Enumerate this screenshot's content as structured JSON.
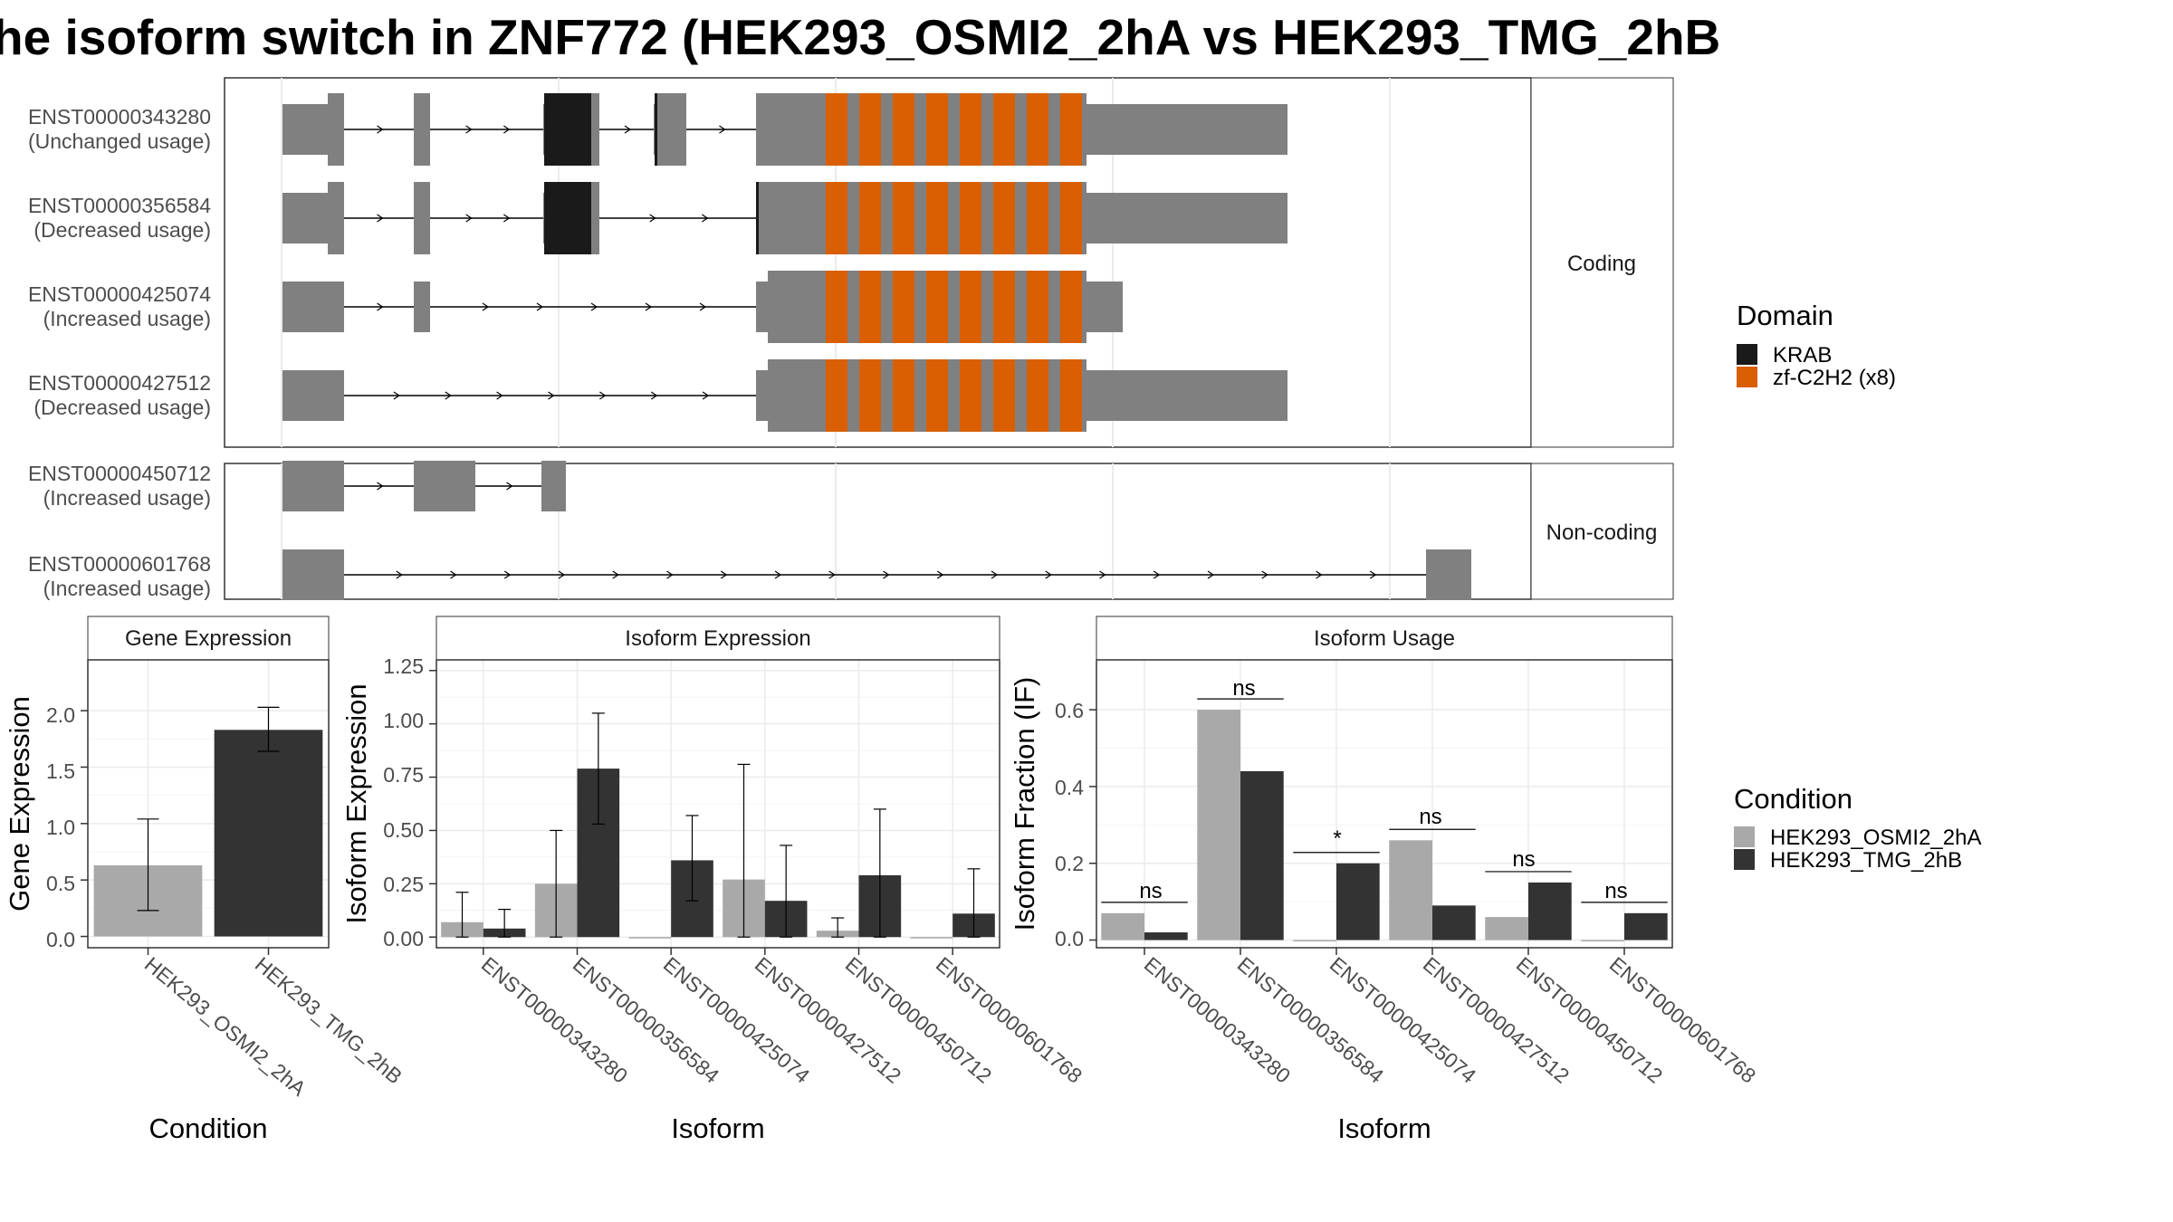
{
  "title": "he isoform switch in ZNF772 (HEK293_OSMI2_2hA vs HEK293_TMG_2hB",
  "colors": {
    "exon": "#808080",
    "krab": "#1a1a1a",
    "zf": "#d95f02",
    "cond1": "#a9a9a9",
    "cond2": "#333333",
    "intron": "#000000",
    "grid": "#ebebeb",
    "strip_bg": "#ffffff"
  },
  "chart_data": [
    {
      "type": "gene_structure",
      "panel_labels": [
        "Coding",
        "Non-coding"
      ],
      "transcripts": [
        {
          "id": "ENST00000343280",
          "usage": "(Unchanged usage)",
          "group": "Coding"
        },
        {
          "id": "ENST00000356584",
          "usage": "(Decreased usage)",
          "group": "Coding"
        },
        {
          "id": "ENST00000425074",
          "usage": "(Increased usage)",
          "group": "Coding"
        },
        {
          "id": "ENST00000427512",
          "usage": "(Decreased usage)",
          "group": "Coding"
        },
        {
          "id": "ENST00000450712",
          "usage": "(Increased usage)",
          "group": "Non-coding"
        },
        {
          "id": "ENST00000601768",
          "usage": "(Increased usage)",
          "group": "Non-coding"
        }
      ],
      "legend": {
        "title": "Domain",
        "items": [
          {
            "label": "KRAB",
            "color": "#1a1a1a"
          },
          {
            "label": "zf-C2H2 (x8)",
            "color": "#d95f02"
          }
        ]
      }
    },
    {
      "type": "bar",
      "panel_label": "Gene Expression",
      "xlabel": "Condition",
      "ylabel": "Gene Expression",
      "ylim": [
        -0.1,
        2.45
      ],
      "yticks": [
        "0.0",
        "0.5",
        "1.0",
        "1.5",
        "2.0"
      ],
      "categories": [
        "HEK293_OSMI2_2hA",
        "HEK293_TMG_2hB"
      ],
      "values": [
        0.63,
        1.83
      ],
      "errors_low": [
        0.23,
        1.64
      ],
      "errors_high": [
        1.04,
        2.03
      ]
    },
    {
      "type": "bar",
      "panel_label": "Isoform Expression",
      "xlabel": "Isoform",
      "ylabel": "Isoform Expression",
      "ylim": [
        -0.05,
        1.3
      ],
      "yticks": [
        "0.00",
        "0.25",
        "0.50",
        "0.75",
        "1.00",
        "1.25"
      ],
      "categories": [
        "ENST00000343280",
        "ENST00000356584",
        "ENST00000425074",
        "ENST00000427512",
        "ENST00000450712",
        "ENST00000601768"
      ],
      "series": [
        {
          "name": "HEK293_OSMI2_2hA",
          "values": [
            0.07,
            0.25,
            0.0,
            0.27,
            0.03,
            0.0
          ],
          "low": [
            0.0,
            0.0,
            0.0,
            0.0,
            0.0,
            0.0
          ],
          "high": [
            0.21,
            0.5,
            0.0,
            0.81,
            0.09,
            0.0
          ]
        },
        {
          "name": "HEK293_TMG_2hB",
          "values": [
            0.04,
            0.79,
            0.36,
            0.17,
            0.29,
            0.11
          ],
          "low": [
            0.0,
            0.53,
            0.17,
            0.0,
            0.0,
            0.0
          ],
          "high": [
            0.13,
            1.05,
            0.57,
            0.43,
            0.6,
            0.32
          ]
        }
      ]
    },
    {
      "type": "bar",
      "panel_label": "Isoform Usage",
      "xlabel": "Isoform",
      "ylabel": "Isoform Fraction (IF)",
      "ylim": [
        -0.02,
        0.73
      ],
      "yticks": [
        "0.0",
        "0.2",
        "0.4",
        "0.6"
      ],
      "categories": [
        "ENST00000343280",
        "ENST00000356584",
        "ENST00000425074",
        "ENST00000427512",
        "ENST00000450712",
        "ENST00000601768"
      ],
      "series": [
        {
          "name": "HEK293_OSMI2_2hA",
          "values": [
            0.07,
            0.6,
            0.0,
            0.26,
            0.06,
            0.0
          ]
        },
        {
          "name": "HEK293_TMG_2hB",
          "values": [
            0.02,
            0.44,
            0.2,
            0.09,
            0.15,
            0.07
          ]
        }
      ],
      "significance": [
        "ns",
        "ns",
        "*",
        "ns",
        "ns",
        "ns"
      ],
      "legend": {
        "title": "Condition",
        "items": [
          {
            "label": "HEK293_OSMI2_2hA",
            "color": "#a9a9a9"
          },
          {
            "label": "HEK293_TMG_2hB",
            "color": "#333333"
          }
        ]
      }
    }
  ]
}
